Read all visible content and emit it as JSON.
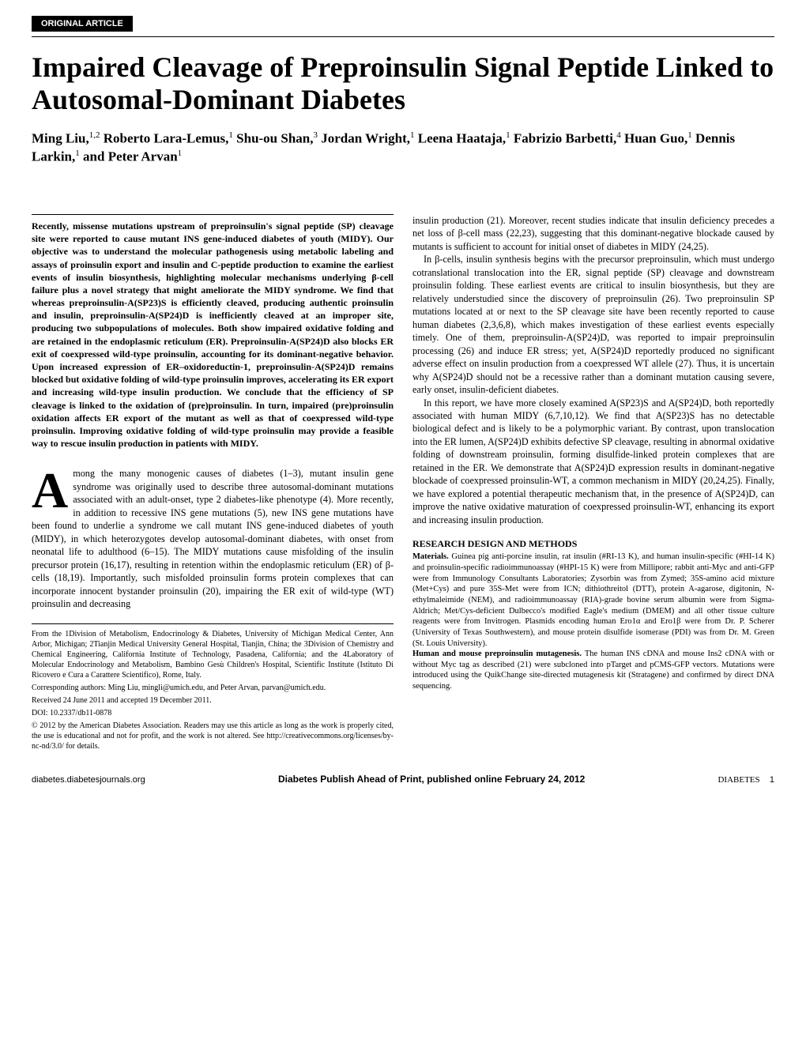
{
  "header": {
    "label": "ORIGINAL ARTICLE"
  },
  "title": "Impaired Cleavage of Preproinsulin Signal Peptide Linked to Autosomal-Dominant Diabetes",
  "authors_html": "Ming Liu,<sup>1,2</sup> Roberto Lara-Lemus,<sup>1</sup> Shu-ou Shan,<sup>3</sup> Jordan Wright,<sup>1</sup> Leena Haataja,<sup>1</sup> Fabrizio Barbetti,<sup>4</sup> Huan Guo,<sup>1</sup> Dennis Larkin,<sup>1</sup> and Peter Arvan<sup>1</sup>",
  "abstract": "Recently, missense mutations upstream of preproinsulin's signal peptide (SP) cleavage site were reported to cause mutant INS gene-induced diabetes of youth (MIDY). Our objective was to understand the molecular pathogenesis using metabolic labeling and assays of proinsulin export and insulin and C-peptide production to examine the earliest events of insulin biosynthesis, highlighting molecular mechanisms underlying β-cell failure plus a novel strategy that might ameliorate the MIDY syndrome. We find that whereas preproinsulin-A(SP23)S is efficiently cleaved, producing authentic proinsulin and insulin, preproinsulin-A(SP24)D is inefficiently cleaved at an improper site, producing two subpopulations of molecules. Both show impaired oxidative folding and are retained in the endoplasmic reticulum (ER). Preproinsulin-A(SP24)D also blocks ER exit of coexpressed wild-type proinsulin, accounting for its dominant-negative behavior. Upon increased expression of ER–oxidoreductin-1, preproinsulin-A(SP24)D remains blocked but oxidative folding of wild-type proinsulin improves, accelerating its ER export and increasing wild-type insulin production. We conclude that the efficiency of SP cleavage is linked to the oxidation of (pre)proinsulin. In turn, impaired (pre)proinsulin oxidation affects ER export of the mutant as well as that of coexpressed wild-type proinsulin. Improving oxidative folding of wild-type proinsulin may provide a feasible way to rescue insulin production in patients with MIDY.",
  "body": {
    "p1_first": "mong the many monogenic causes of diabetes (1–3), mutant insulin gene syndrome was originally used to describe three autosomal-dominant mutations associated with an adult-onset, type 2 diabetes-like phenotype (4). More recently, in addition to recessive INS gene mutations (5), new INS gene mutations have been found to underlie a syndrome we call mutant INS gene-induced diabetes of youth (MIDY), in which heterozygotes develop autosomal-dominant diabetes, with onset from neonatal life to adulthood (6–15). The MIDY mutations cause misfolding of the insulin precursor protein (16,17), resulting in retention within the endoplasmic reticulum (ER) of β-cells (18,19). Importantly, such misfolded proinsulin forms protein complexes that can incorporate innocent bystander proinsulin (20), impairing the ER exit of wild-type (WT) proinsulin and decreasing",
    "p1_cont": "insulin production (21). Moreover, recent studies indicate that insulin deficiency precedes a net loss of β-cell mass (22,23), suggesting that this dominant-negative blockade caused by mutants is sufficient to account for initial onset of diabetes in MIDY (24,25).",
    "p2": "In β-cells, insulin synthesis begins with the precursor preproinsulin, which must undergo cotranslational translocation into the ER, signal peptide (SP) cleavage and downstream proinsulin folding. These earliest events are critical to insulin biosynthesis, but they are relatively understudied since the discovery of preproinsulin (26). Two preproinsulin SP mutations located at or next to the SP cleavage site have been recently reported to cause human diabetes (2,3,6,8), which makes investigation of these earliest events especially timely. One of them, preproinsulin-A(SP24)D, was reported to impair preproinsulin processing (26) and induce ER stress; yet, A(SP24)D reportedly produced no significant adverse effect on insulin production from a coexpressed WT allele (27). Thus, it is uncertain why A(SP24)D should not be a recessive rather than a dominant mutation causing severe, early onset, insulin-deficient diabetes.",
    "p3": "In this report, we have more closely examined A(SP23)S and A(SP24)D, both reportedly associated with human MIDY (6,7,10,12). We find that A(SP23)S has no detectable biological defect and is likely to be a polymorphic variant. By contrast, upon translocation into the ER lumen, A(SP24)D exhibits defective SP cleavage, resulting in abnormal oxidative folding of downstream proinsulin, forming disulfide-linked protein complexes that are retained in the ER. We demonstrate that A(SP24)D expression results in dominant-negative blockade of coexpressed proinsulin-WT, a common mechanism in MIDY (20,24,25). Finally, we have explored a potential therapeutic mechanism that, in the presence of A(SP24)D, can improve the native oxidative maturation of coexpressed proinsulin-WT, enhancing its export and increasing insulin production."
  },
  "methods": {
    "heading": "RESEARCH DESIGN AND METHODS",
    "materials_label": "Materials.",
    "materials_text": " Guinea pig anti-porcine insulin, rat insulin (#RI-13 K), and human insulin-specific (#HI-14 K) and proinsulin-specific radioimmunoassay (#HPI-15 K) were from Millipore; rabbit anti-Myc and anti-GFP were from Immunology Consultants Laboratories; Zysorbin was from Zymed; 35S-amino acid mixture (Met+Cys) and pure 35S-Met were from ICN; dithiothreitol (DTT), protein A-agarose, digitonin, N-ethylmaleimide (NEM), and radioimmunoassay (RIA)-grade bovine serum albumin were from Sigma-Aldrich; Met/Cys-deficient Dulbecco's modified Eagle's medium (DMEM) and all other tissue culture reagents were from Invitrogen. Plasmids encoding human Ero1α and Ero1β were from Dr. P. Scherer (University of Texas Southwestern), and mouse protein disulfide isomerase (PDI) was from Dr. M. Green (St. Louis University).",
    "mutagenesis_label": "Human and mouse preproinsulin mutagenesis.",
    "mutagenesis_text": " The human INS cDNA and mouse Ins2 cDNA with or without Myc tag as described (21) were subcloned into pTarget and pCMS-GFP vectors. Mutations were introduced using the QuikChange site-directed mutagenesis kit (Stratagene) and confirmed by direct DNA sequencing."
  },
  "footnotes": {
    "affil": "From the 1Division of Metabolism, Endocrinology & Diabetes, University of Michigan Medical Center, Ann Arbor, Michigan; 2Tianjin Medical University General Hospital, Tianjin, China; the 3Division of Chemistry and Chemical Engineering, California Institute of Technology, Pasadena, California; and the 4Laboratory of Molecular Endocrinology and Metabolism, Bambino Gesù Children's Hospital, Scientific Institute (Istituto Di Ricovero e Cura a Carattere Scientifico), Rome, Italy.",
    "corr": "Corresponding authors: Ming Liu, mingli@umich.edu, and Peter Arvan, parvan@umich.edu.",
    "recv": "Received 24 June 2011 and accepted 19 December 2011.",
    "doi": "DOI: 10.2337/db11-0878",
    "copyright": "© 2012 by the American Diabetes Association. Readers may use this article as long as the work is properly cited, the use is educational and not for profit, and the work is not altered. See http://creativecommons.org/licenses/by-nc-nd/3.0/ for details."
  },
  "footer": {
    "left": "diabetes.diabetesjournals.org",
    "center": "Diabetes Publish Ahead of Print, published online February 24, 2012",
    "right_journal": "DIABETES",
    "right_page": "1"
  }
}
